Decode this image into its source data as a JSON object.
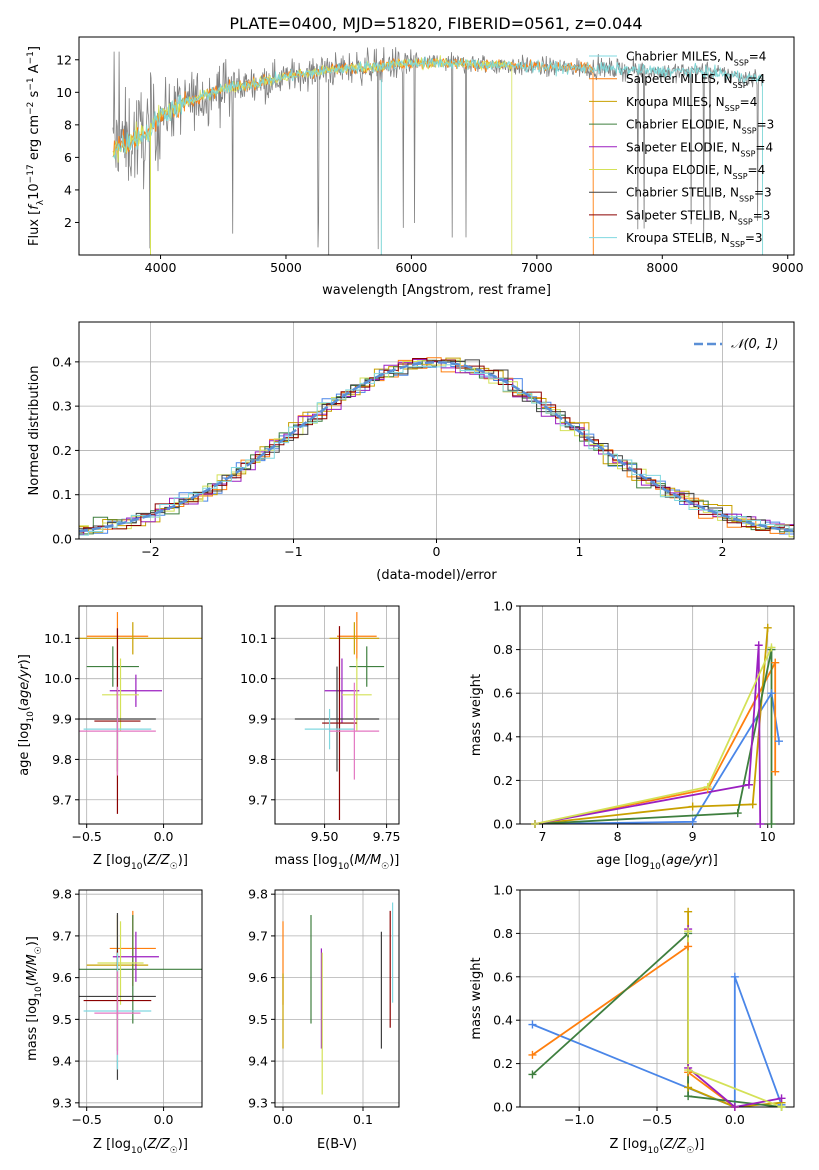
{
  "figure": {
    "title": "PLATE=0400, MJD=51820, FIBERID=0561, z=0.044"
  },
  "legend_labels": [
    "Chabrier MILES, N",
    "Salpeter MILES, N",
    "Kroupa MILES, N",
    "Chabrier ELODIE, N",
    "Salpeter ELODIE, N",
    "Kroupa ELODIE, N",
    "Chabrier STELIB, N",
    "Salpeter STELIB, N",
    "Kroupa STELIB, N"
  ],
  "colors": {
    "spectrum": "#808080",
    "fit_cyan": "#7fd7d7",
    "fit_orange": "#ff7f0e",
    "fit_yellow": "#d4e157",
    "normal": "#5b8fd6",
    "grid": "#b0b0b0",
    "models": [
      "#4a86e8",
      "#ff7f0e",
      "#c8a000",
      "#3f7f3f",
      "#9b1fc0",
      "#d4e157",
      "#404040",
      "#8b0000",
      "#80d8e0",
      "#e377c2",
      "#bcbd22",
      "#555555"
    ]
  },
  "chart_data": [
    {
      "type": "line",
      "title": "PLATE=0400, MJD=51820, FIBERID=0561, z=0.044",
      "xlabel": "wavelength [Angstrom, rest frame]",
      "ylabel": "Flux [f_λ 10^-17 erg cm^-2 s^-1 A^-1]",
      "xlim": [
        3350,
        9050
      ],
      "ylim": [
        0,
        13.4
      ],
      "xticks": [
        "4000",
        "5000",
        "6000",
        "7000",
        "8000",
        "9000"
      ],
      "yticks": [
        "2",
        "4",
        "6",
        "8",
        "10",
        "12"
      ],
      "legend_loc": "upper-right",
      "series": [
        {
          "name": "Chabrier MILES, N_SSP=4",
          "subscript": "SSP",
          "value": "=4"
        },
        {
          "name": "Salpeter MILES, N_SSP=4",
          "subscript": "SSP",
          "value": "=4"
        },
        {
          "name": "Kroupa MILES, N_SSP=4",
          "subscript": "SSP",
          "value": "=4"
        },
        {
          "name": "Chabrier ELODIE, N_SSP=3",
          "subscript": "SSP",
          "value": "=3"
        },
        {
          "name": "Salpeter ELODIE, N_SSP=4",
          "subscript": "SSP",
          "value": "=4"
        },
        {
          "name": "Kroupa ELODIE, N_SSP=4",
          "subscript": "SSP",
          "value": "=4"
        },
        {
          "name": "Chabrier STELIB, N_SSP=3",
          "subscript": "SSP",
          "value": "=3"
        },
        {
          "name": "Salpeter STELIB, N_SSP=3",
          "subscript": "SSP",
          "value": "=3"
        },
        {
          "name": "Kroupa STELIB, N_SSP=3",
          "subscript": "SSP",
          "value": "=3"
        }
      ],
      "continuum": {
        "x": [
          3620,
          3700,
          3800,
          3900,
          4000,
          4100,
          4200,
          4300,
          4400,
          4500,
          4700,
          4900,
          5100,
          5300,
          5500,
          5700,
          6000,
          6300,
          6600,
          6900,
          7200,
          7400,
          7700,
          8000,
          8300,
          8600,
          8800
        ],
        "y": [
          6.3,
          6.8,
          7.2,
          7.5,
          8.6,
          9.0,
          9.4,
          9.6,
          10.0,
          10.2,
          10.5,
          10.8,
          11.1,
          11.3,
          11.5,
          11.6,
          11.8,
          11.8,
          11.7,
          11.6,
          11.5,
          11.5,
          11.4,
          11.3,
          11.3,
          11.0,
          10.8
        ]
      }
    },
    {
      "type": "area",
      "xlabel": "(data-model)/error",
      "ylabel": "Normed distribution",
      "xlim": [
        -2.5,
        2.5
      ],
      "ylim": [
        0,
        0.49
      ],
      "xticks": [
        "−2",
        "−1",
        "0",
        "1",
        "2"
      ],
      "yticks": [
        "0.0",
        "0.1",
        "0.2",
        "0.3",
        "0.4"
      ],
      "legend": "𝒩(0, 1)",
      "legend_loc": "upper-right",
      "bin_width": 0.1,
      "note": "nine step histograms, one per model"
    },
    {
      "type": "scatter",
      "xlabel": "Z [log10(Z/Z☉)]",
      "ylabel": "age [log10(age/yr)]",
      "xlim": [
        -0.55,
        0.25
      ],
      "ylim": [
        9.64,
        10.18
      ],
      "xticks": [
        "−0.5",
        "0.0"
      ],
      "yticks": [
        "9.7",
        "9.8",
        "9.9",
        "10.0",
        "10.1"
      ],
      "points": [
        {
          "x": -0.3,
          "y": 10.105,
          "xerr": 0.2,
          "yerr": 0.06
        },
        {
          "x": -0.2,
          "y": 10.1,
          "xerr": 0.45,
          "yerr": 0.04
        },
        {
          "x": -0.33,
          "y": 10.03,
          "xerr": 0.17,
          "yerr": 0.05
        },
        {
          "x": -0.18,
          "y": 9.97,
          "xerr": 0.17,
          "yerr": 0.04
        },
        {
          "x": -0.28,
          "y": 9.96,
          "xerr": 0.12,
          "yerr": 0.09
        },
        {
          "x": -0.3,
          "y": 9.9,
          "xerr": 0.25,
          "yerr": 0.13
        },
        {
          "x": -0.3,
          "y": 9.895,
          "xerr": 0.15,
          "yerr": 0.23
        },
        {
          "x": -0.3,
          "y": 9.875,
          "xerr": 0.22,
          "yerr": 0.05
        },
        {
          "x": -0.3,
          "y": 9.87,
          "xerr": 0.25,
          "yerr": 0.11
        }
      ]
    },
    {
      "type": "scatter",
      "xlabel": "mass [log10(M/M☉)]",
      "ylabel": "",
      "xlim": [
        9.3,
        9.8
      ],
      "ylim": [
        9.64,
        10.18
      ],
      "xticks": [
        "9.50",
        "9.75"
      ],
      "yticks": [
        "9.7",
        "9.8",
        "9.9",
        "10.0",
        "10.1"
      ],
      "points": [
        {
          "x": 9.63,
          "y": 10.105,
          "xerr": 0.08,
          "yerr": 0.06
        },
        {
          "x": 9.62,
          "y": 10.1,
          "xerr": 0.1,
          "yerr": 0.04
        },
        {
          "x": 9.67,
          "y": 10.03,
          "xerr": 0.07,
          "yerr": 0.05
        },
        {
          "x": 9.57,
          "y": 9.97,
          "xerr": 0.07,
          "yerr": 0.08
        },
        {
          "x": 9.63,
          "y": 9.96,
          "xerr": 0.06,
          "yerr": 0.09
        },
        {
          "x": 9.55,
          "y": 9.9,
          "xerr": 0.17,
          "yerr": 0.13
        },
        {
          "x": 9.56,
          "y": 9.89,
          "xerr": 0.07,
          "yerr": 0.24
        },
        {
          "x": 9.52,
          "y": 9.875,
          "xerr": 0.1,
          "yerr": 0.05
        },
        {
          "x": 9.62,
          "y": 9.87,
          "xerr": 0.1,
          "yerr": 0.12
        }
      ]
    },
    {
      "type": "line",
      "xlabel": "age [log10(age/yr)]",
      "ylabel": "mass weight",
      "xlim": [
        6.7,
        10.35
      ],
      "ylim": [
        0,
        1.0
      ],
      "xticks": [
        "7",
        "8",
        "9",
        "10"
      ],
      "yticks": [
        "0.0",
        "0.2",
        "0.4",
        "0.6",
        "0.8",
        "1.0"
      ],
      "series": [
        {
          "name": "",
          "x": [
            6.9,
            9.0,
            10.05,
            10.15
          ],
          "y": [
            0.0,
            0.01,
            0.6,
            0.38
          ]
        },
        {
          "name": "",
          "x": [
            6.9,
            9.2,
            10.1,
            10.1
          ],
          "y": [
            0.0,
            0.16,
            0.74,
            0.24
          ]
        },
        {
          "name": "",
          "x": [
            6.9,
            9.0,
            9.8,
            10.0
          ],
          "y": [
            0.0,
            0.08,
            0.09,
            0.9
          ]
        },
        {
          "name": "",
          "x": [
            6.9,
            9.6,
            10.05,
            10.05
          ],
          "y": [
            0.0,
            0.05,
            0.8,
            0.0
          ]
        },
        {
          "name": "",
          "x": [
            6.9,
            9.75,
            9.88,
            9.9
          ],
          "y": [
            0.0,
            0.18,
            0.82,
            0.0
          ]
        },
        {
          "name": "",
          "x": [
            6.9,
            9.2,
            10.05
          ],
          "y": [
            0.0,
            0.17,
            0.81
          ]
        }
      ]
    },
    {
      "type": "scatter",
      "xlabel": "Z [log10(Z/Z☉)]",
      "ylabel": "mass [log10(M/M☉)]",
      "xlim": [
        -0.55,
        0.25
      ],
      "ylim": [
        9.29,
        9.81
      ],
      "xticks": [
        "−0.5",
        "0.0"
      ],
      "yticks": [
        "9.3",
        "9.4",
        "9.5",
        "9.6",
        "9.7",
        "9.8"
      ],
      "points": [
        {
          "x": -0.2,
          "y": 9.67,
          "xerr": 0.15,
          "yerr": 0.09
        },
        {
          "x": -0.3,
          "y": 9.63,
          "xerr": 0.2,
          "yerr": 0.12
        },
        {
          "x": -0.2,
          "y": 9.62,
          "xerr": 0.45,
          "yerr": 0.13
        },
        {
          "x": -0.18,
          "y": 9.65,
          "xerr": 0.15,
          "yerr": 0.06
        },
        {
          "x": -0.28,
          "y": 9.635,
          "xerr": 0.15,
          "yerr": 0.1
        },
        {
          "x": -0.3,
          "y": 9.555,
          "xerr": 0.25,
          "yerr": 0.2
        },
        {
          "x": -0.3,
          "y": 9.545,
          "xerr": 0.22,
          "yerr": 0.12
        },
        {
          "x": -0.3,
          "y": 9.52,
          "xerr": 0.22,
          "yerr": 0.14
        },
        {
          "x": -0.3,
          "y": 9.515,
          "xerr": 0.15,
          "yerr": 0.1
        }
      ]
    },
    {
      "type": "scatter",
      "xlabel": "E(B-V)",
      "ylabel": "",
      "xlim": [
        -0.01,
        0.145
      ],
      "ylim": [
        9.29,
        9.81
      ],
      "xticks": [
        "0.0",
        "0.1"
      ],
      "yticks": [
        "9.3",
        "9.4",
        "9.5",
        "9.6",
        "9.7",
        "9.8"
      ],
      "points": [
        {
          "x": 0.0,
          "y": 9.635,
          "xerr": 0,
          "yerr": 0.1
        },
        {
          "x": 0.0,
          "y": 9.52,
          "xerr": 0,
          "yerr": 0.09
        },
        {
          "x": 0.035,
          "y": 9.62,
          "xerr": 0,
          "yerr": 0.13
        },
        {
          "x": 0.048,
          "y": 9.55,
          "xerr": 0,
          "yerr": 0.12
        },
        {
          "x": 0.049,
          "y": 9.49,
          "xerr": 0,
          "yerr": 0.17
        },
        {
          "x": 0.123,
          "y": 9.57,
          "xerr": 0,
          "yerr": 0.14
        },
        {
          "x": 0.134,
          "y": 9.62,
          "xerr": 0,
          "yerr": 0.14
        },
        {
          "x": 0.137,
          "y": 9.66,
          "xerr": 0,
          "yerr": 0.12
        }
      ]
    },
    {
      "type": "line",
      "xlabel": "Z [log10(Z/Z☉)]",
      "ylabel": "mass weight",
      "xlim": [
        -1.38,
        0.38
      ],
      "ylim": [
        0,
        1.0
      ],
      "xticks": [
        "−1.0",
        "−0.5",
        "0.0"
      ],
      "yticks": [
        "0.0",
        "0.2",
        "0.4",
        "0.6",
        "0.8",
        "1.0"
      ],
      "series": [
        {
          "name": "",
          "x": [
            -1.3,
            0.0,
            0.0,
            0.3
          ],
          "y": [
            0.38,
            0.0,
            0.6,
            0.01
          ]
        },
        {
          "name": "",
          "x": [
            -1.3,
            -0.3,
            -0.3,
            0.0
          ],
          "y": [
            0.24,
            0.74,
            0.16,
            0.0
          ]
        },
        {
          "name": "",
          "x": [
            -0.3,
            -0.3,
            0.0,
            0.3
          ],
          "y": [
            0.9,
            0.09,
            0.0,
            0.02
          ]
        },
        {
          "name": "",
          "x": [
            -1.3,
            -0.3,
            -0.3,
            0.3
          ],
          "y": [
            0.15,
            0.8,
            0.05,
            0.0
          ]
        },
        {
          "name": "",
          "x": [
            -0.3,
            -0.3,
            0.0,
            0.3
          ],
          "y": [
            0.82,
            0.18,
            0.0,
            0.04
          ]
        },
        {
          "name": "",
          "x": [
            -0.3,
            -0.3,
            0.3
          ],
          "y": [
            0.81,
            0.17,
            0.0
          ]
        }
      ]
    }
  ]
}
